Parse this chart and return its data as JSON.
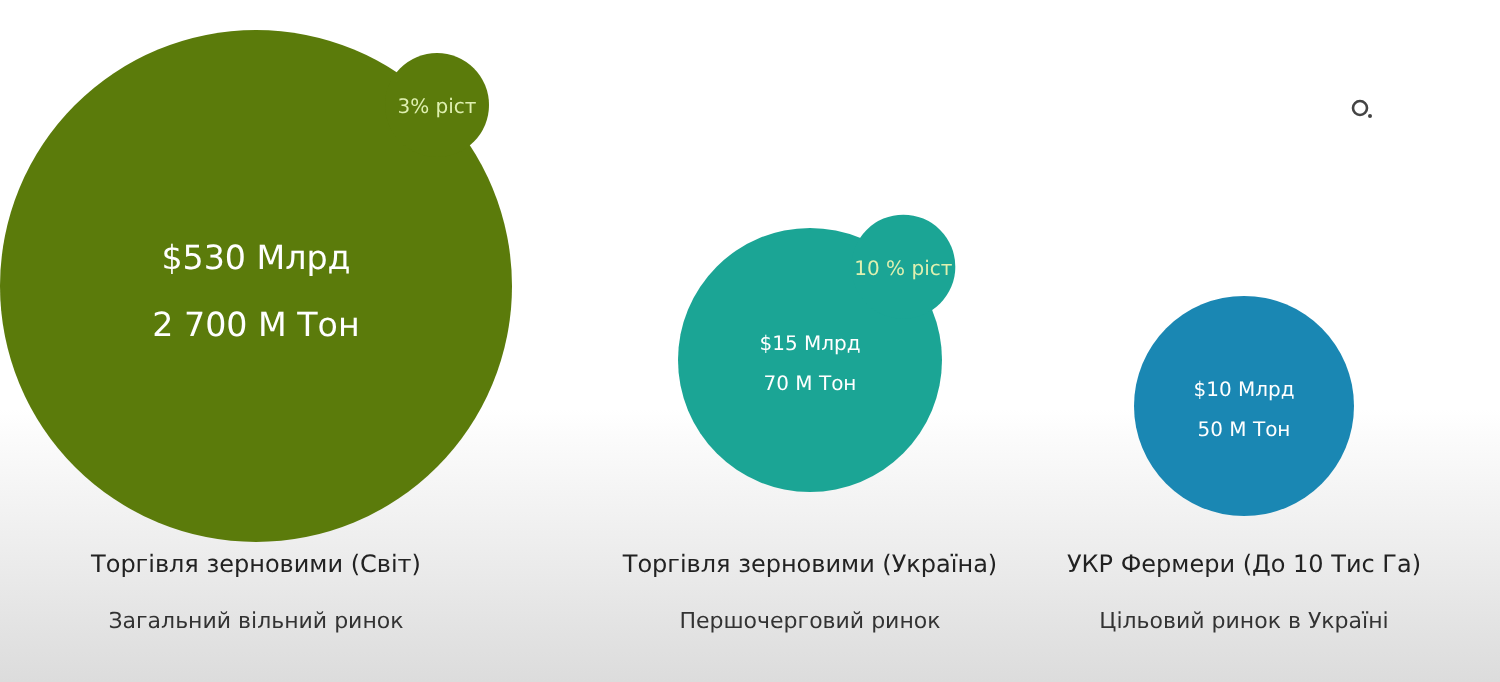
{
  "chart_data": {
    "type": "other",
    "categories": [
      "Торгівля зерновими (Світ)",
      "Торгівля зерновими (Україна)",
      "УКР Фермери (До 10 Тис Га)"
    ],
    "series": [
      {
        "colors": [
          "#5b7b0b",
          "#1ba595",
          "#1a87b3"
        ],
        "values": [
          530,
          15,
          10
        ],
        "value_labels": [
          "$530 Млрд",
          "$15 Млрд",
          "$10 Млрд"
        ]
      },
      {
        "values": [
          2700,
          70,
          50
        ],
        "value_labels": [
          "2 700 М Тон",
          "70 М Тон",
          "50 М Тон"
        ]
      },
      {
        "colors": [
          "#5b7b0b",
          "#1ba595",
          null
        ],
        "values": [
          3,
          10,
          null
        ],
        "value_labels": [
          "3% ріст",
          "10 % ріст",
          null
        ]
      }
    ],
    "annotations": [
      {
        "text": "Загальний вільний ринок",
        "x": "Торгівля зерновими (Світ)"
      },
      {
        "text": "Першочерговий ринок",
        "x": "Торгівля зерновими (Україна)"
      },
      {
        "text": "Цільовий ринок в Україні",
        "x": "УКР Фермери (До 10 Тис Га)"
      }
    ]
  }
}
